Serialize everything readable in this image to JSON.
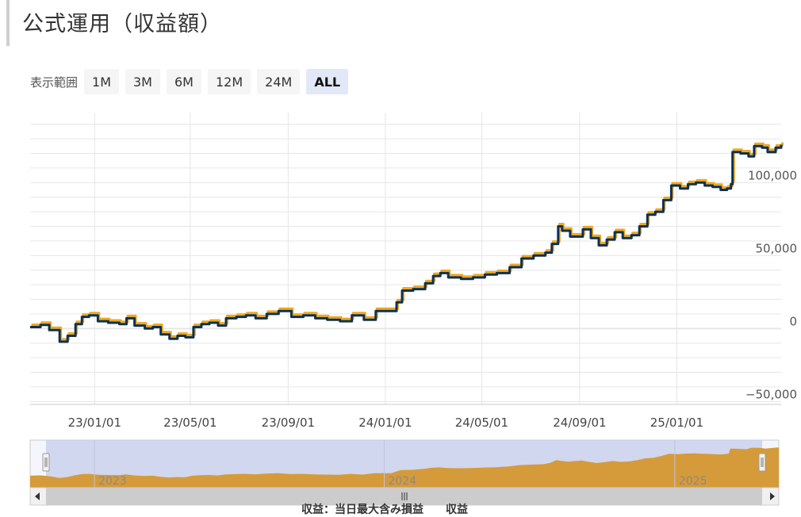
{
  "page": {
    "title": "公式運用（収益額）",
    "range_label": "表示範囲",
    "range_buttons": [
      "1M",
      "3M",
      "6M",
      "12M",
      "24M",
      "ALL"
    ],
    "selected_range": "ALL",
    "footer": "収益：当日最大含み損益　　収益"
  },
  "colors": {
    "main_line": "#0d3152",
    "shadow_line": "#f0a81e",
    "navigator_fill": "#d59a3a",
    "navigator_mask": "#c4ccea",
    "grid": "#e6e6e6"
  },
  "chart_data": {
    "type": "line",
    "title": "",
    "x_labels": [
      "23/01/01",
      "23/05/01",
      "23/09/01",
      "24/01/01",
      "24/05/01",
      "24/09/01",
      "25/01/01"
    ],
    "y_ticks": [
      "100,000",
      "50,000",
      "0",
      "−50,000"
    ],
    "xlim": [
      "2022-10-12",
      "2025-05-12"
    ],
    "ylim": [
      -52000,
      148000
    ],
    "grid": true,
    "navigator_labels": [
      "2023",
      "2024",
      "2025"
    ],
    "series": [
      {
        "values": [
          [
            "2022-10-12",
            1000
          ],
          [
            "2022-10-25",
            2500
          ],
          [
            "2022-11-05",
            -1000
          ],
          [
            "2022-11-18",
            -9000
          ],
          [
            "2022-11-28",
            -5000
          ],
          [
            "2022-12-08",
            3000
          ],
          [
            "2022-12-16",
            8000
          ],
          [
            "2022-12-25",
            9000
          ],
          [
            "2023-01-05",
            5000
          ],
          [
            "2023-01-18",
            4000
          ],
          [
            "2023-02-01",
            3000
          ],
          [
            "2023-02-10",
            7000
          ],
          [
            "2023-02-20",
            2000
          ],
          [
            "2023-03-05",
            0
          ],
          [
            "2023-03-15",
            1000
          ],
          [
            "2023-03-25",
            -4000
          ],
          [
            "2023-04-05",
            -7000
          ],
          [
            "2023-04-15",
            -5000
          ],
          [
            "2023-04-25",
            -6000
          ],
          [
            "2023-05-05",
            1000
          ],
          [
            "2023-05-15",
            3000
          ],
          [
            "2023-05-25",
            4000
          ],
          [
            "2023-06-05",
            2000
          ],
          [
            "2023-06-15",
            7000
          ],
          [
            "2023-06-28",
            8000
          ],
          [
            "2023-07-10",
            9000
          ],
          [
            "2023-07-22",
            7000
          ],
          [
            "2023-08-05",
            10000
          ],
          [
            "2023-08-20",
            12000
          ],
          [
            "2023-09-05",
            8000
          ],
          [
            "2023-09-20",
            9000
          ],
          [
            "2023-10-05",
            7000
          ],
          [
            "2023-10-20",
            6000
          ],
          [
            "2023-11-05",
            5000
          ],
          [
            "2023-11-20",
            9000
          ],
          [
            "2023-12-05",
            6000
          ],
          [
            "2023-12-20",
            12000
          ],
          [
            "2024-01-05",
            12000
          ],
          [
            "2024-01-10",
            12000
          ],
          [
            "2024-01-15",
            18000
          ],
          [
            "2024-01-22",
            26000
          ],
          [
            "2024-02-05",
            27000
          ],
          [
            "2024-02-20",
            31000
          ],
          [
            "2024-03-01",
            36000
          ],
          [
            "2024-03-10",
            38000
          ],
          [
            "2024-03-20",
            35000
          ],
          [
            "2024-04-05",
            34000
          ],
          [
            "2024-04-20",
            35000
          ],
          [
            "2024-05-05",
            37000
          ],
          [
            "2024-05-20",
            38000
          ],
          [
            "2024-06-05",
            42000
          ],
          [
            "2024-06-20",
            48000
          ],
          [
            "2024-07-05",
            50000
          ],
          [
            "2024-07-20",
            52000
          ],
          [
            "2024-07-28",
            58000
          ],
          [
            "2024-08-05",
            70000
          ],
          [
            "2024-08-10",
            67000
          ],
          [
            "2024-08-20",
            63000
          ],
          [
            "2024-09-05",
            68000
          ],
          [
            "2024-09-15",
            62000
          ],
          [
            "2024-09-25",
            57000
          ],
          [
            "2024-10-05",
            61000
          ],
          [
            "2024-10-15",
            66000
          ],
          [
            "2024-10-25",
            62000
          ],
          [
            "2024-11-05",
            64000
          ],
          [
            "2024-11-15",
            70000
          ],
          [
            "2024-11-25",
            78000
          ],
          [
            "2024-12-05",
            80000
          ],
          [
            "2024-12-15",
            88000
          ],
          [
            "2024-12-25",
            98000
          ],
          [
            "2025-01-05",
            96000
          ],
          [
            "2025-01-15",
            99000
          ],
          [
            "2025-01-25",
            100000
          ],
          [
            "2025-02-05",
            98000
          ],
          [
            "2025-02-15",
            97000
          ],
          [
            "2025-02-25",
            95000
          ],
          [
            "2025-03-05",
            96000
          ],
          [
            "2025-03-10",
            99000
          ],
          [
            "2025-03-12",
            121000
          ],
          [
            "2025-03-22",
            120000
          ],
          [
            "2025-04-01",
            118000
          ],
          [
            "2025-04-08",
            125000
          ],
          [
            "2025-04-18",
            124000
          ],
          [
            "2025-04-25",
            121000
          ],
          [
            "2025-05-05",
            124000
          ],
          [
            "2025-05-12",
            126000
          ]
        ]
      }
    ]
  }
}
